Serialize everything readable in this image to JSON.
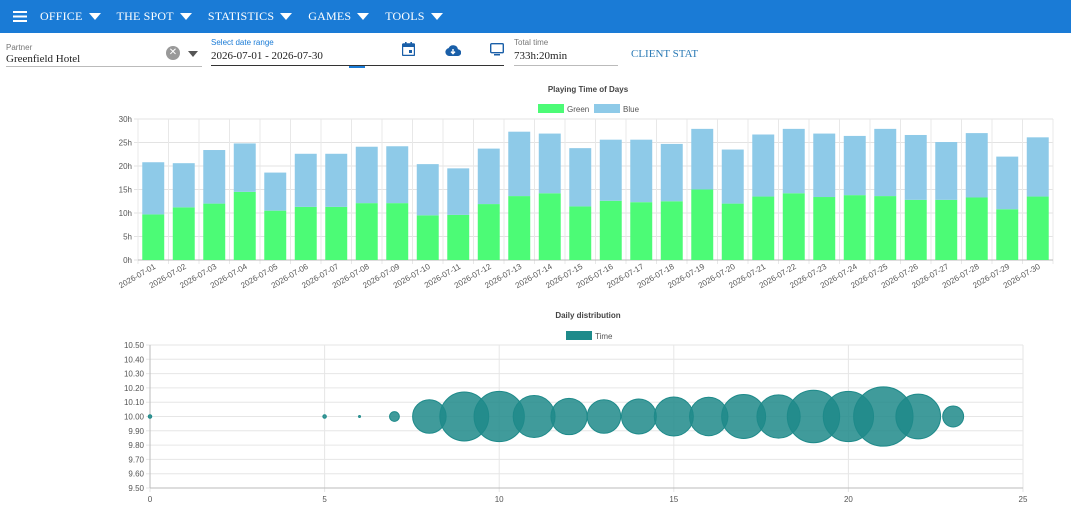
{
  "nav": {
    "items": [
      {
        "label": "OFFICE"
      },
      {
        "label": "THE SPOT"
      },
      {
        "label": "STATISTICS"
      },
      {
        "label": "GAMES"
      },
      {
        "label": "TOOLS"
      }
    ]
  },
  "filters": {
    "partner_label": "Partner",
    "partner_value": "Greenfield Hotel",
    "date_label": "Select date range",
    "date_value": "2026-07-01 - 2026-07-30",
    "total_label": "Total time",
    "total_value": "733h:20min",
    "client_stat": "CLIENT STAT"
  },
  "colors": {
    "accent": "#1a7bd6",
    "green": "#4cfb76",
    "blue": "#8ecae8",
    "bubble": "#1e8a8a"
  },
  "chart_data": [
    {
      "type": "bar",
      "title": "Playing Time of Days",
      "stacked": true,
      "legend": "top",
      "categories": [
        "2026-07-01",
        "2026-07-02",
        "2026-07-03",
        "2026-07-04",
        "2026-07-05",
        "2026-07-06",
        "2026-07-07",
        "2026-07-08",
        "2026-07-09",
        "2026-07-10",
        "2026-07-11",
        "2026-07-12",
        "2026-07-13",
        "2026-07-14",
        "2026-07-15",
        "2026-07-16",
        "2026-07-17",
        "2026-07-18",
        "2026-07-19",
        "2026-07-20",
        "2026-07-21",
        "2026-07-22",
        "2026-07-23",
        "2026-07-24",
        "2026-07-25",
        "2026-07-26",
        "2026-07-27",
        "2026-07-28",
        "2026-07-29",
        "2026-07-30"
      ],
      "series": [
        {
          "name": "Green",
          "color": "#4cfb76",
          "values": [
            9.7,
            11.2,
            12.0,
            14.5,
            10.5,
            11.3,
            11.3,
            12.1,
            12.1,
            9.5,
            9.6,
            11.9,
            13.6,
            14.2,
            11.4,
            12.6,
            12.3,
            12.5,
            15.0,
            12.0,
            13.5,
            14.2,
            13.4,
            13.8,
            13.6,
            12.8,
            12.8,
            13.3,
            10.8,
            13.5
          ]
        },
        {
          "name": "Blue",
          "color": "#8ecae8",
          "values": [
            11.1,
            9.4,
            11.4,
            10.3,
            8.1,
            11.3,
            11.3,
            12.0,
            12.1,
            10.9,
            9.9,
            11.8,
            13.7,
            12.7,
            12.4,
            13.0,
            13.3,
            12.2,
            12.9,
            11.5,
            13.2,
            13.7,
            13.5,
            12.6,
            14.3,
            13.8,
            12.3,
            13.7,
            11.2,
            12.6
          ]
        }
      ],
      "ylim": [
        0,
        30
      ],
      "yticks": [
        "0h",
        "5h",
        "10h",
        "15h",
        "20h",
        "25h",
        "30h"
      ],
      "grid": true
    },
    {
      "type": "scatter",
      "title": "Daily distribution",
      "legend": "top",
      "series": [
        {
          "name": "Time",
          "color": "#1e8a8a",
          "points": [
            {
              "x": 0,
              "y": 10.0,
              "r": 0.05
            },
            {
              "x": 5,
              "y": 10.0,
              "r": 0.05
            },
            {
              "x": 6,
              "y": 10.0,
              "r": 0.01
            },
            {
              "x": 7,
              "y": 10.0,
              "r": 0.14
            },
            {
              "x": 8,
              "y": 10.0,
              "r": 0.48
            },
            {
              "x": 9,
              "y": 10.0,
              "r": 0.7
            },
            {
              "x": 10,
              "y": 10.0,
              "r": 0.72
            },
            {
              "x": 11,
              "y": 10.0,
              "r": 0.6
            },
            {
              "x": 12,
              "y": 10.0,
              "r": 0.52
            },
            {
              "x": 13,
              "y": 10.0,
              "r": 0.48
            },
            {
              "x": 14,
              "y": 10.0,
              "r": 0.5
            },
            {
              "x": 15,
              "y": 10.0,
              "r": 0.56
            },
            {
              "x": 16,
              "y": 10.0,
              "r": 0.55
            },
            {
              "x": 17,
              "y": 10.0,
              "r": 0.63
            },
            {
              "x": 18,
              "y": 10.0,
              "r": 0.62
            },
            {
              "x": 19,
              "y": 10.0,
              "r": 0.75
            },
            {
              "x": 20,
              "y": 10.0,
              "r": 0.72
            },
            {
              "x": 21,
              "y": 10.0,
              "r": 0.85
            },
            {
              "x": 22,
              "y": 10.0,
              "r": 0.64
            },
            {
              "x": 23,
              "y": 10.0,
              "r": 0.3
            }
          ]
        }
      ],
      "xlim": [
        0,
        25
      ],
      "xticks": [
        "0",
        "5",
        "10",
        "15",
        "20",
        "25"
      ],
      "ylim": [
        9.5,
        10.5
      ],
      "yticks": [
        "9.50",
        "9.60",
        "9.70",
        "9.80",
        "9.90",
        "10.00",
        "10.10",
        "10.20",
        "10.30",
        "10.40",
        "10.50"
      ],
      "grid": true
    }
  ]
}
